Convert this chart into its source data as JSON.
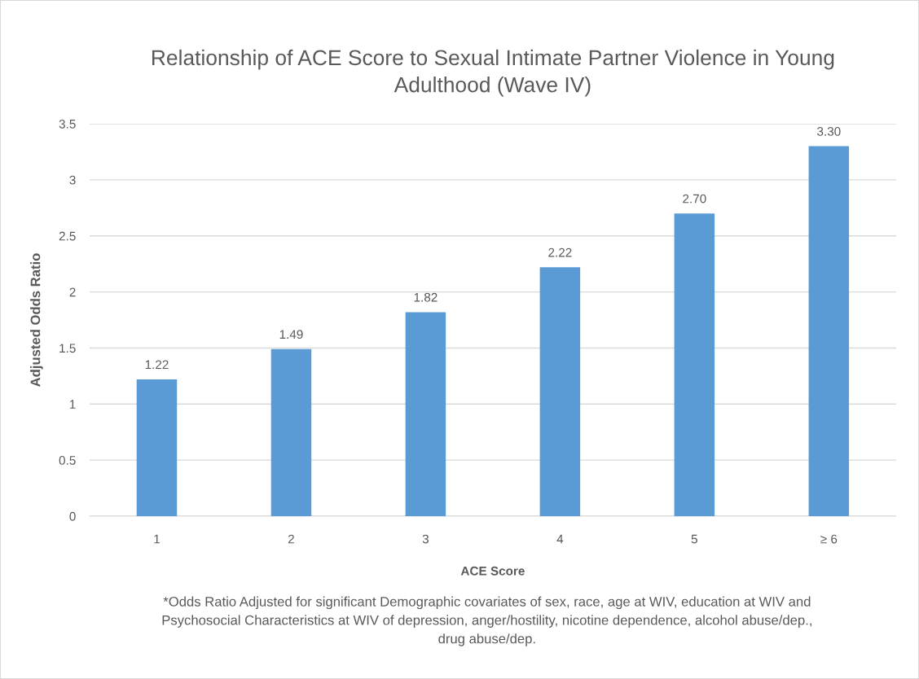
{
  "chart_data": {
    "type": "bar",
    "title": "Relationship of ACE Score to Sexual Intimate Partner Violence in Young Adulthood (Wave IV)",
    "xlabel": "ACE Score",
    "ylabel": "Adjusted Odds Ratio",
    "categories": [
      "1",
      "2",
      "3",
      "4",
      "5",
      "≥ 6"
    ],
    "values": [
      1.22,
      1.49,
      1.82,
      2.22,
      2.7,
      3.3
    ],
    "value_labels": [
      "1.22",
      "1.49",
      "1.82",
      "2.22",
      "2.70",
      "3.30"
    ],
    "color": "#5b9bd5",
    "ylim": [
      0,
      3.5
    ],
    "yticks": [
      0,
      0.5,
      1,
      1.5,
      2,
      2.5,
      3,
      3.5
    ],
    "grid": "y",
    "legend": false,
    "annotations": [
      "*Odds Ratio Adjusted for significant Demographic covariates of sex, race, age at WIV, education at WIV and Psychosocial Characteristics at WIV of depression, anger/hostility, nicotine dependence, alcohol abuse/dep., drug abuse/dep."
    ]
  }
}
